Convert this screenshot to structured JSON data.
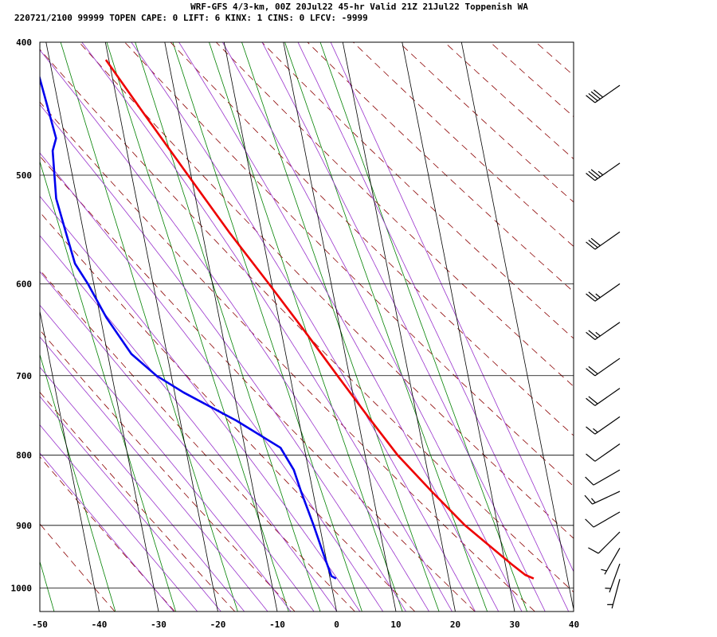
{
  "header": {
    "line1": "WRF-GFS 4/3-km, 00Z 20Jul22 45-hr Valid 21Z 21Jul22 Toppenish WA",
    "line2": "220721/2100 99999  TOPEN   CAPE:     0 LIFT:     6 KINX:     1 CINS:     0 LFCV: -9999"
  },
  "chart_data": {
    "type": "skew-t log-p sounding",
    "x_axis": {
      "quantity": "temperature (C)",
      "ticks": [
        -50,
        -40,
        -30,
        -20,
        -10,
        0,
        10,
        20,
        30,
        40
      ],
      "range": [
        -50,
        40
      ]
    },
    "y_axis": {
      "quantity": "pressure (hPa)",
      "scale": "log",
      "ticks": [
        400,
        500,
        600,
        700,
        800,
        900,
        1000
      ],
      "range": [
        1040,
        400
      ]
    },
    "grid": true,
    "colors": {
      "temperature": "#ee0000",
      "dewpoint": "#0000ee",
      "isotherm": "#000000",
      "dry_adiabat": "#8b0000",
      "moist_adiabat": "#9932cc",
      "mixing_ratio": "#008000",
      "wind_barb": "#000000"
    },
    "temperature": [
      {
        "p": 984,
        "t": 34.3
      },
      {
        "p": 978,
        "t": 33.0
      },
      {
        "p": 960,
        "t": 31.0
      },
      {
        "p": 900,
        "t": 24.5
      },
      {
        "p": 850,
        "t": 20.0
      },
      {
        "p": 800,
        "t": 15.5
      },
      {
        "p": 750,
        "t": 11.8
      },
      {
        "p": 700,
        "t": 8.0
      },
      {
        "p": 650,
        "t": 4.0
      },
      {
        "p": 600,
        "t": -0.5
      },
      {
        "p": 550,
        "t": -5.5
      },
      {
        "p": 500,
        "t": -10.5
      },
      {
        "p": 450,
        "t": -16.0
      },
      {
        "p": 412,
        "t": -20.5
      }
    ],
    "dewpoint": [
      {
        "p": 984,
        "t": 1.0
      },
      {
        "p": 980,
        "t": 0.3
      },
      {
        "p": 950,
        "t": -0.2
      },
      {
        "p": 900,
        "t": -1.0
      },
      {
        "p": 850,
        "t": -2.0
      },
      {
        "p": 820,
        "t": -2.5
      },
      {
        "p": 790,
        "t": -4.0
      },
      {
        "p": 755,
        "t": -10.5
      },
      {
        "p": 720,
        "t": -18.5
      },
      {
        "p": 700,
        "t": -22.5
      },
      {
        "p": 675,
        "t": -26.0
      },
      {
        "p": 635,
        "t": -29.0
      },
      {
        "p": 600,
        "t": -31.0
      },
      {
        "p": 580,
        "t": -32.5
      },
      {
        "p": 550,
        "t": -33.0
      },
      {
        "p": 520,
        "t": -33.5
      },
      {
        "p": 480,
        "t": -32.5
      },
      {
        "p": 470,
        "t": -31.5
      },
      {
        "p": 440,
        "t": -32.0
      },
      {
        "p": 412,
        "t": -32.5
      }
    ],
    "winds": [
      {
        "p": 985,
        "dir": 195,
        "spd": 3
      },
      {
        "p": 960,
        "dir": 200,
        "spd": 5
      },
      {
        "p": 935,
        "dir": 210,
        "spd": 7
      },
      {
        "p": 910,
        "dir": 225,
        "spd": 10
      },
      {
        "p": 880,
        "dir": 240,
        "spd": 12
      },
      {
        "p": 850,
        "dir": 245,
        "spd": 13
      },
      {
        "p": 820,
        "dir": 240,
        "spd": 12
      },
      {
        "p": 785,
        "dir": 235,
        "spd": 10
      },
      {
        "p": 750,
        "dir": 235,
        "spd": 15
      },
      {
        "p": 715,
        "dir": 235,
        "spd": 20
      },
      {
        "p": 680,
        "dir": 235,
        "spd": 20
      },
      {
        "p": 640,
        "dir": 235,
        "spd": 25
      },
      {
        "p": 600,
        "dir": 235,
        "spd": 25
      },
      {
        "p": 550,
        "dir": 235,
        "spd": 30
      },
      {
        "p": 490,
        "dir": 235,
        "spd": 35
      },
      {
        "p": 430,
        "dir": 235,
        "spd": 40
      }
    ]
  }
}
